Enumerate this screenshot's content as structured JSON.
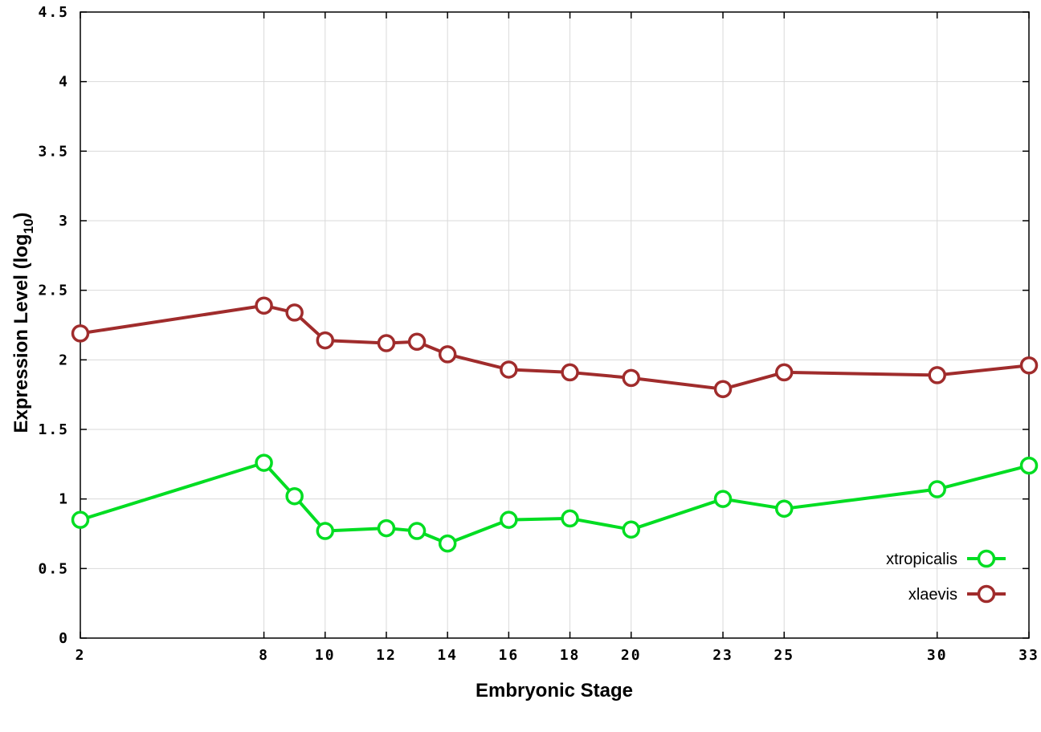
{
  "chart_data": {
    "type": "line",
    "title": "",
    "xlabel": "Embryonic Stage",
    "ylabel": "Expression Level (log10)",
    "ylabel_parts": {
      "pre": "Expression Level (log",
      "sub": "10",
      "post": ")"
    },
    "xlim": [
      2,
      33
    ],
    "ylim": [
      0,
      4.5
    ],
    "grid": true,
    "legend_position": "bottom-right-inside",
    "x_ticks": [
      2,
      8,
      10,
      12,
      14,
      16,
      18,
      20,
      23,
      25,
      30,
      33
    ],
    "x_tick_labels": [
      "2",
      "8",
      "10",
      "12",
      "14",
      "16",
      "18",
      "20",
      "23",
      "25",
      "30",
      "33"
    ],
    "y_ticks": [
      0,
      0.5,
      1,
      1.5,
      2,
      2.5,
      3,
      3.5,
      4,
      4.5
    ],
    "y_tick_labels": [
      "0",
      "0.5",
      "1",
      "1.5",
      "2",
      "2.5",
      "3",
      "3.5",
      "4",
      "4.5"
    ],
    "x": [
      2,
      8,
      9,
      10,
      12,
      13,
      14,
      16,
      18,
      20,
      23,
      25,
      30,
      33
    ],
    "series": [
      {
        "name": "xtropicalis",
        "color": "#00dd22",
        "marker": "open-circle",
        "values": [
          0.85,
          1.26,
          1.02,
          0.77,
          0.79,
          0.77,
          0.68,
          0.85,
          0.86,
          0.78,
          1.0,
          0.93,
          1.07,
          1.24
        ]
      },
      {
        "name": "xlaevis",
        "color": "#a02c2c",
        "marker": "open-circle",
        "values": [
          2.19,
          2.39,
          2.34,
          2.14,
          2.12,
          2.13,
          2.04,
          1.93,
          1.91,
          1.87,
          1.79,
          1.91,
          1.89,
          1.96
        ]
      }
    ]
  }
}
